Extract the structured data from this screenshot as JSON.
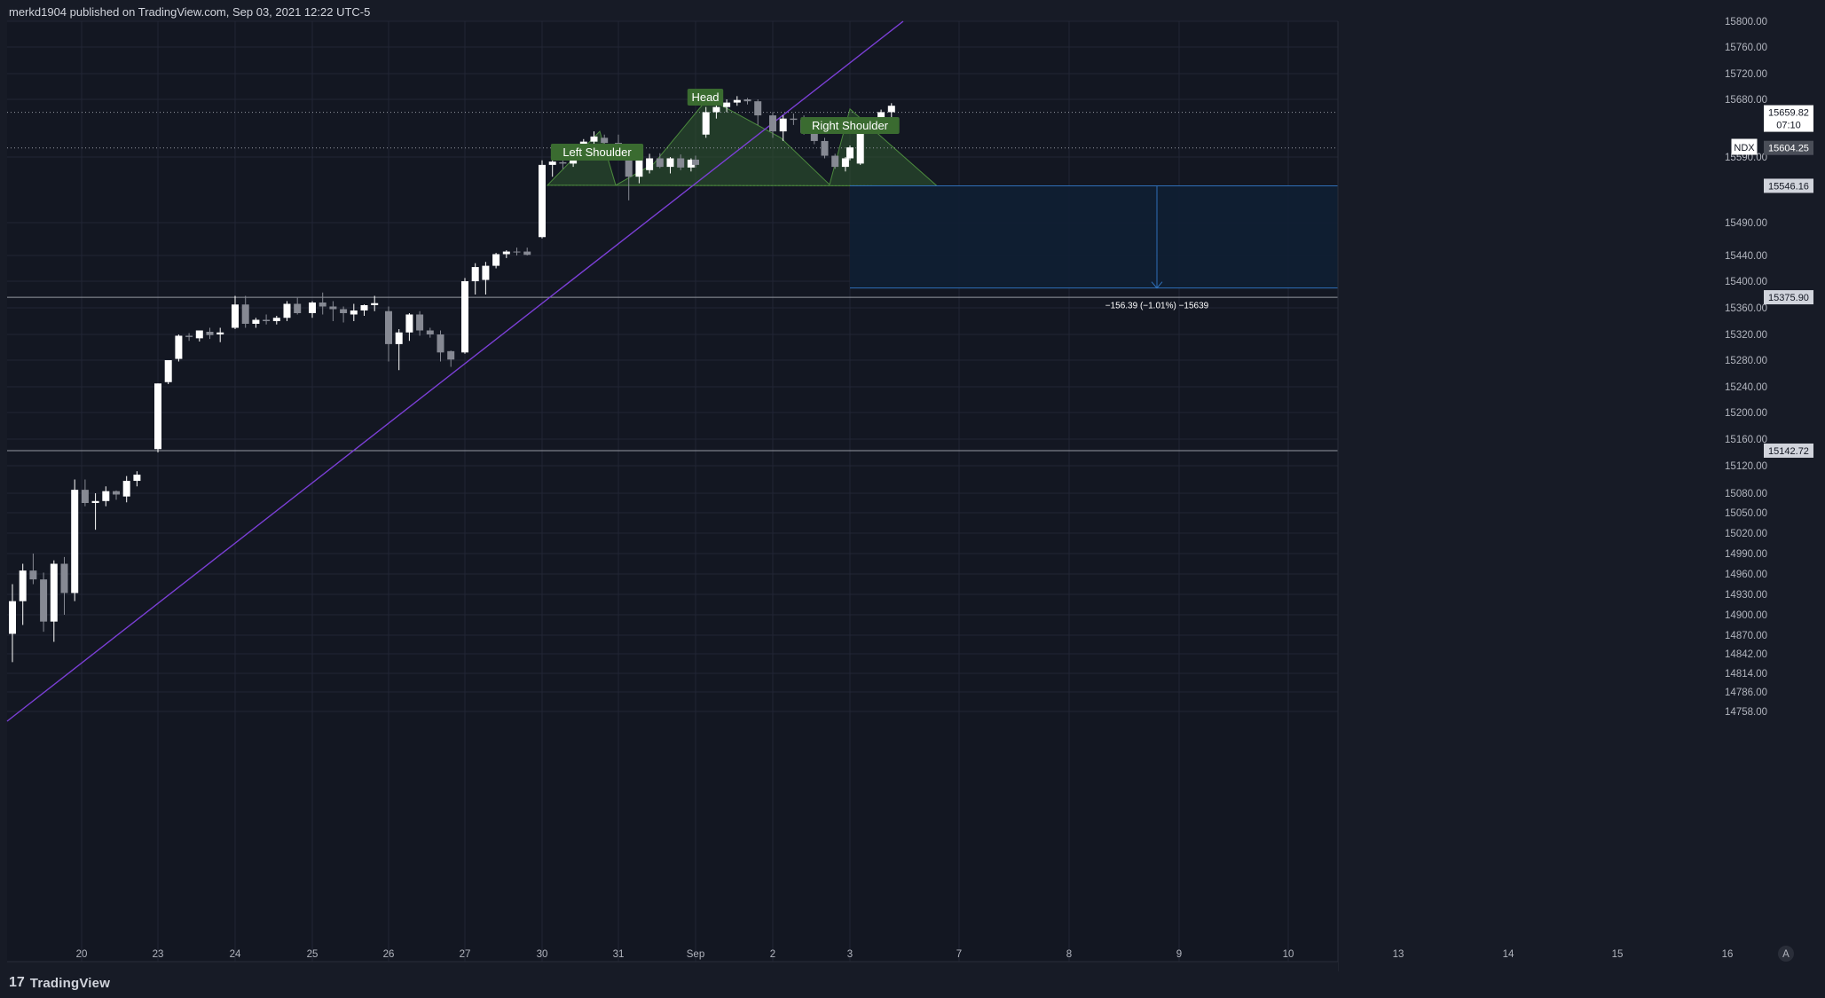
{
  "header": {
    "published_text": "merkd1904 published on TradingView.com, Sep 03, 2021 12:22 UTC-5"
  },
  "footer": {
    "brand": "TradingView",
    "brand_mark": "17"
  },
  "symbol_tag": "NDX",
  "price_tags": {
    "current": "15659.82",
    "countdown": "07:10",
    "level_1": "15604.25",
    "level_2": "15546.16",
    "level_3": "15375.90",
    "level_4": "15142.72"
  },
  "pattern_labels": {
    "left": "Left Shoulder",
    "head": "Head",
    "right": "Right Shoulder"
  },
  "measure_label": "−156.39 (−1.01%) −15639",
  "axis_corner": "A",
  "colors": {
    "background": "#131722",
    "grid": "#232632",
    "up_candle": "#ffffff",
    "down_candle": "#868993",
    "trendline": "#7b3fd6",
    "pattern_fill": "#2f5a2f",
    "pattern_label_bg": "#3a6b30",
    "projection_fill": "#0f1f33",
    "projection_line": "#2f6fb8"
  },
  "chart_data": {
    "type": "candlestick",
    "y_axis_ticks": [
      "15800.00",
      "15760.00",
      "15720.00",
      "15680.00",
      "15590.00",
      "15490.00",
      "15440.00",
      "15400.00",
      "15360.00",
      "15320.00",
      "15280.00",
      "15240.00",
      "15200.00",
      "15160.00",
      "15120.00",
      "15080.00",
      "15050.00",
      "15020.00",
      "14990.00",
      "14960.00",
      "14930.00",
      "14900.00",
      "14870.00",
      "14842.00",
      "14814.00",
      "14786.00",
      "14758.00"
    ],
    "x_axis_ticks": [
      "20",
      "23",
      "24",
      "25",
      "26",
      "27",
      "30",
      "31",
      "Sep",
      "2",
      "3",
      "7",
      "8",
      "9",
      "10",
      "13",
      "14",
      "15",
      "16"
    ],
    "horizontal_levels": [
      15659.82,
      15604.25,
      15546.16,
      15375.9,
      15142.72
    ],
    "projection": {
      "from": 15546.16,
      "to": 15389.77,
      "change": -156.39,
      "percent": -1.01
    },
    "trendline": {
      "from": {
        "date": "Aug 19",
        "price": 14744
      },
      "to": {
        "date": "Sep 1",
        "price": 15800
      }
    },
    "candles": [
      {
        "o": 14872,
        "h": 14945,
        "l": 14830,
        "c": 14920
      },
      {
        "o": 14920,
        "h": 14975,
        "l": 14885,
        "c": 14965
      },
      {
        "o": 14965,
        "h": 14990,
        "l": 14945,
        "c": 14952
      },
      {
        "o": 14952,
        "h": 14962,
        "l": 14875,
        "c": 14890
      },
      {
        "o": 14890,
        "h": 14980,
        "l": 14860,
        "c": 14975
      },
      {
        "o": 14975,
        "h": 14985,
        "l": 14900,
        "c": 14932
      },
      {
        "o": 14932,
        "h": 15100,
        "l": 14920,
        "c": 15085
      },
      {
        "o": 15085,
        "h": 15100,
        "l": 15060,
        "c": 15065
      },
      {
        "o": 15065,
        "h": 15080,
        "l": 15025,
        "c": 15068
      },
      {
        "o": 15068,
        "h": 15090,
        "l": 15060,
        "c": 15083
      },
      {
        "o": 15083,
        "h": 15084,
        "l": 15070,
        "c": 15078
      },
      {
        "o": 15075,
        "h": 15105,
        "l": 15066,
        "c": 15098
      },
      {
        "o": 15098,
        "h": 15112,
        "l": 15090,
        "c": 15107
      },
      {
        "o": 15145,
        "h": 15245,
        "l": 15140,
        "c": 15245
      },
      {
        "o": 15247,
        "h": 15280,
        "l": 15244,
        "c": 15280
      },
      {
        "o": 15282,
        "h": 15320,
        "l": 15278,
        "c": 15318
      },
      {
        "o": 15318,
        "h": 15322,
        "l": 15310,
        "c": 15316
      },
      {
        "o": 15314,
        "h": 15326,
        "l": 15309,
        "c": 15326
      },
      {
        "o": 15324,
        "h": 15330,
        "l": 15313,
        "c": 15319
      },
      {
        "o": 15320,
        "h": 15330,
        "l": 15308,
        "c": 15323
      },
      {
        "o": 15330,
        "h": 15378,
        "l": 15328,
        "c": 15365
      },
      {
        "o": 15365,
        "h": 15378,
        "l": 15330,
        "c": 15336
      },
      {
        "o": 15336,
        "h": 15345,
        "l": 15330,
        "c": 15342
      },
      {
        "o": 15342,
        "h": 15350,
        "l": 15335,
        "c": 15340
      },
      {
        "o": 15340,
        "h": 15348,
        "l": 15335,
        "c": 15345
      },
      {
        "o": 15345,
        "h": 15370,
        "l": 15340,
        "c": 15366
      },
      {
        "o": 15366,
        "h": 15375,
        "l": 15350,
        "c": 15352
      },
      {
        "o": 15352,
        "h": 15370,
        "l": 15345,
        "c": 15368
      },
      {
        "o": 15368,
        "h": 15383,
        "l": 15350,
        "c": 15362
      },
      {
        "o": 15362,
        "h": 15370,
        "l": 15340,
        "c": 15358
      },
      {
        "o": 15358,
        "h": 15362,
        "l": 15338,
        "c": 15352
      },
      {
        "o": 15350,
        "h": 15366,
        "l": 15340,
        "c": 15356
      },
      {
        "o": 15356,
        "h": 15365,
        "l": 15348,
        "c": 15364
      },
      {
        "o": 15364,
        "h": 15378,
        "l": 15355,
        "c": 15367
      },
      {
        "o": 15355,
        "h": 15362,
        "l": 15278,
        "c": 15305
      },
      {
        "o": 15305,
        "h": 15328,
        "l": 15265,
        "c": 15323
      },
      {
        "o": 15323,
        "h": 15352,
        "l": 15310,
        "c": 15350
      },
      {
        "o": 15350,
        "h": 15355,
        "l": 15318,
        "c": 15326
      },
      {
        "o": 15326,
        "h": 15330,
        "l": 15315,
        "c": 15320
      },
      {
        "o": 15320,
        "h": 15326,
        "l": 15278,
        "c": 15292
      },
      {
        "o": 15294,
        "h": 15295,
        "l": 15270,
        "c": 15281
      },
      {
        "o": 15292,
        "h": 15405,
        "l": 15290,
        "c": 15400
      },
      {
        "o": 15400,
        "h": 15428,
        "l": 15380,
        "c": 15422
      },
      {
        "o": 15402,
        "h": 15430,
        "l": 15380,
        "c": 15424
      },
      {
        "o": 15424,
        "h": 15444,
        "l": 15420,
        "c": 15442
      },
      {
        "o": 15442,
        "h": 15448,
        "l": 15436,
        "c": 15446
      },
      {
        "o": 15446,
        "h": 15452,
        "l": 15440,
        "c": 15445
      },
      {
        "o": 15446,
        "h": 15452,
        "l": 15440,
        "c": 15441
      },
      {
        "o": 15468,
        "h": 15585,
        "l": 15466,
        "c": 15578
      },
      {
        "o": 15578,
        "h": 15590,
        "l": 15560,
        "c": 15583
      },
      {
        "o": 15582,
        "h": 15590,
        "l": 15572,
        "c": 15580
      },
      {
        "o": 15580,
        "h": 15605,
        "l": 15575,
        "c": 15600
      },
      {
        "o": 15600,
        "h": 15618,
        "l": 15590,
        "c": 15614
      },
      {
        "o": 15614,
        "h": 15630,
        "l": 15600,
        "c": 15622
      },
      {
        "o": 15620,
        "h": 15625,
        "l": 15600,
        "c": 15612
      },
      {
        "o": 15612,
        "h": 15625,
        "l": 15600,
        "c": 15608
      },
      {
        "o": 15600,
        "h": 15604,
        "l": 15524,
        "c": 15560
      },
      {
        "o": 15560,
        "h": 15592,
        "l": 15550,
        "c": 15590
      },
      {
        "o": 15570,
        "h": 15595,
        "l": 15565,
        "c": 15588
      },
      {
        "o": 15588,
        "h": 15596,
        "l": 15573,
        "c": 15575
      },
      {
        "o": 15575,
        "h": 15590,
        "l": 15565,
        "c": 15588
      },
      {
        "o": 15588,
        "h": 15594,
        "l": 15570,
        "c": 15574
      },
      {
        "o": 15574,
        "h": 15588,
        "l": 15568,
        "c": 15586
      },
      {
        "o": 15586,
        "h": 15592,
        "l": 15574,
        "c": 15578
      },
      {
        "o": 15625,
        "h": 15668,
        "l": 15620,
        "c": 15660
      },
      {
        "o": 15660,
        "h": 15675,
        "l": 15650,
        "c": 15668
      },
      {
        "o": 15668,
        "h": 15680,
        "l": 15660,
        "c": 15675
      },
      {
        "o": 15675,
        "h": 15685,
        "l": 15670,
        "c": 15679
      },
      {
        "o": 15680,
        "h": 15682,
        "l": 15672,
        "c": 15677
      },
      {
        "o": 15677,
        "h": 15680,
        "l": 15640,
        "c": 15655
      },
      {
        "o": 15655,
        "h": 15660,
        "l": 15620,
        "c": 15630
      },
      {
        "o": 15630,
        "h": 15655,
        "l": 15615,
        "c": 15650
      },
      {
        "o": 15650,
        "h": 15658,
        "l": 15640,
        "c": 15648
      },
      {
        "o": 15648,
        "h": 15655,
        "l": 15625,
        "c": 15628
      },
      {
        "o": 15628,
        "h": 15632,
        "l": 15610,
        "c": 15615
      },
      {
        "o": 15615,
        "h": 15620,
        "l": 15588,
        "c": 15592
      },
      {
        "o": 15592,
        "h": 15595,
        "l": 15572,
        "c": 15575
      },
      {
        "o": 15575,
        "h": 15590,
        "l": 15568,
        "c": 15588
      },
      {
        "o": 15588,
        "h": 15608,
        "l": 15585,
        "c": 15605
      },
      {
        "o": 15580,
        "h": 15640,
        "l": 15578,
        "c": 15636
      },
      {
        "o": 15636,
        "h": 15652,
        "l": 15630,
        "c": 15650
      },
      {
        "o": 15650,
        "h": 15664,
        "l": 15645,
        "c": 15660
      },
      {
        "o": 15660,
        "h": 15674,
        "l": 15648,
        "c": 15670
      }
    ]
  }
}
